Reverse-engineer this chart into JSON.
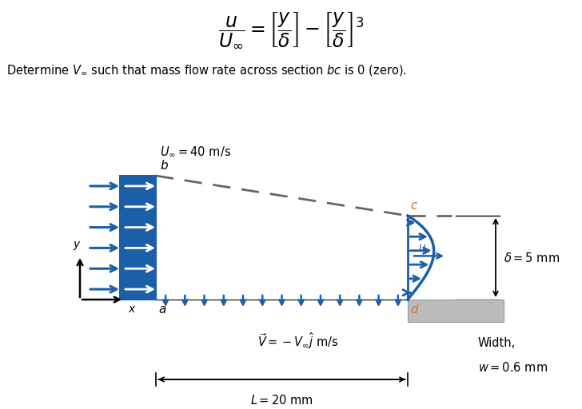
{
  "bg_color": "#ffffff",
  "arrow_color": "#1a5fa8",
  "dashed_color": "#666666",
  "plate_color": "#bbbbbb",
  "orange": "#c87832",
  "black": "#000000",
  "blue": "#1a5fa8",
  "U_inf_label": "$U_{\\infty} = 40$ m/s",
  "delta_label": "$\\delta = 5$ mm",
  "V_label": "$\\vec{V} = -V_{\\infty}\\hat{j}$ m/s",
  "L_label": "$L = 20$ mm",
  "width_label1": "Width,",
  "width_label2": "$w = 0.6$ mm",
  "point_a": "a",
  "point_b": "b",
  "point_c": "c",
  "point_d": "d",
  "axis_x": "x",
  "axis_y": "y"
}
